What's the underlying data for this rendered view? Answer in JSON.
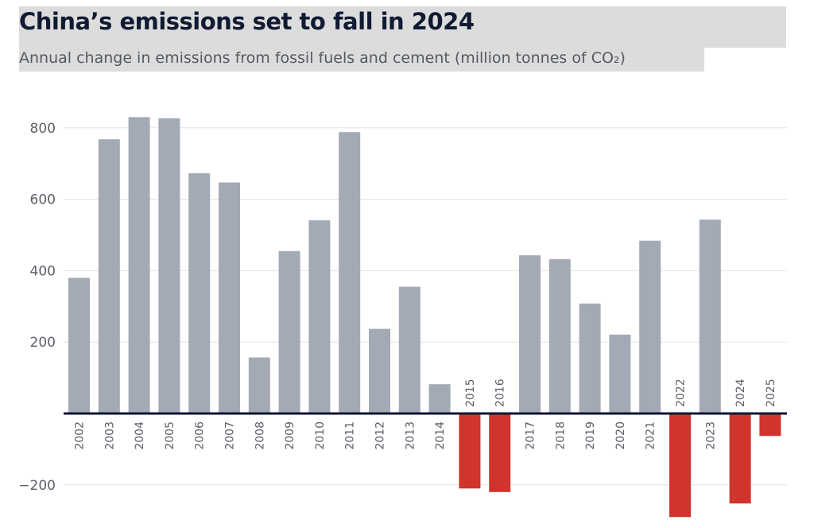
{
  "header": {
    "title": "China’s emissions set to fall in 2024",
    "subtitle": "Annual change in emissions from fossil fuels and cement (million tonnes of CO₂)"
  },
  "colors": {
    "positive_bar": "#a4aab5",
    "negative_bar": "#d0342c",
    "zero_line": "#0f1730",
    "gridline": "#e3e3e3",
    "title_band": "#dcdcdc"
  },
  "chart_data": {
    "type": "bar",
    "title": "China’s emissions set to fall in 2024",
    "subtitle": "Annual change in emissions from fossil fuels and cement (million tonnes of CO₂)",
    "xlabel": "",
    "ylabel": "",
    "ylim": [
      -290,
      870
    ],
    "yticks": [
      -200,
      200,
      400,
      600,
      800
    ],
    "ytick_labels": [
      "−200",
      "200",
      "400",
      "600",
      "800"
    ],
    "grid": true,
    "legend": "none",
    "categories": [
      "2002",
      "2003",
      "2004",
      "2005",
      "2006",
      "2007",
      "2008",
      "2009",
      "2010",
      "2011",
      "2012",
      "2013",
      "2014",
      "2015",
      "2016",
      "2017",
      "2018",
      "2019",
      "2020",
      "2021",
      "2022",
      "2023",
      "2024",
      "2025"
    ],
    "values": [
      380,
      768,
      830,
      827,
      673,
      647,
      157,
      455,
      541,
      788,
      237,
      355,
      82,
      -210,
      -220,
      443,
      432,
      308,
      221,
      484,
      -290,
      543,
      -252,
      -63
    ]
  }
}
